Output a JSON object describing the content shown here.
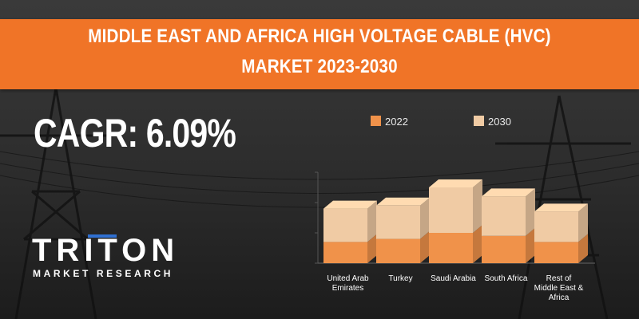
{
  "banner": {
    "title_line1": "MIDDLE EAST AND AFRICA HIGH VOLTAGE CABLE (HVC)",
    "title_line2": "MARKET 2023-2030"
  },
  "cagr_text": "CAGR: 6.09%",
  "logo": {
    "top": "TRITON",
    "bottom": "MARKET RESEARCH"
  },
  "colors": {
    "banner": "#f07427",
    "series_2022": "#f0924a",
    "series_2030": "#f0cba4"
  },
  "chart_data": {
    "type": "bar",
    "stacked": true,
    "title": "",
    "xlabel": "",
    "ylabel": "",
    "categories": [
      [
        "United Arab",
        "Emirates"
      ],
      [
        "Turkey"
      ],
      [
        "Saudi Arabia"
      ],
      [
        "South Africa"
      ],
      [
        "Rest of",
        "Middle East &",
        "Africa"
      ]
    ],
    "series": [
      {
        "name": "2022",
        "values": [
          0.7,
          0.8,
          1.0,
          0.9,
          0.7
        ]
      },
      {
        "name": "2030",
        "values": [
          1.1,
          1.1,
          1.5,
          1.3,
          1.0
        ]
      }
    ],
    "ylim": [
      0,
      3
    ],
    "grid": false,
    "legend": "top"
  }
}
